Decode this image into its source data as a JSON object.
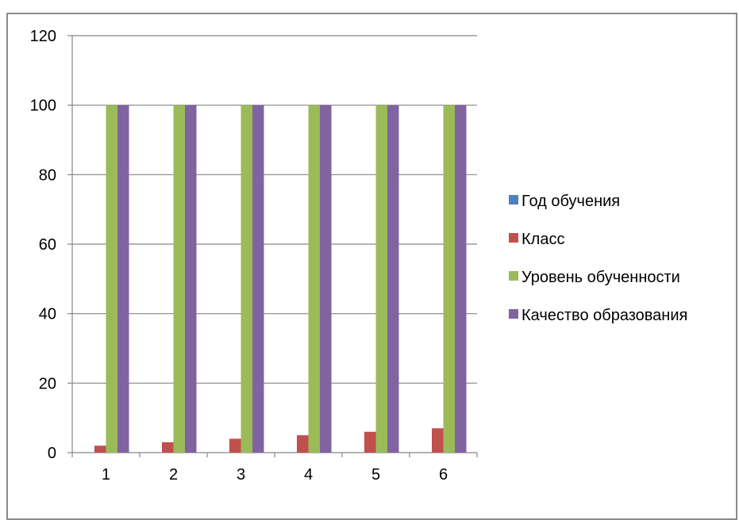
{
  "chart_data": {
    "type": "bar",
    "categories": [
      "1",
      "2",
      "3",
      "4",
      "5",
      "6"
    ],
    "series": [
      {
        "name": "Год обучения",
        "values": [
          0,
          0,
          0,
          0,
          0,
          0
        ],
        "color": "#4F81BD"
      },
      {
        "name": "Класс",
        "values": [
          2,
          3,
          4,
          5,
          6,
          7
        ],
        "color": "#C0504D"
      },
      {
        "name": "Уровень обученности",
        "values": [
          100,
          100,
          100,
          100,
          100,
          100
        ],
        "color": "#9BBB59"
      },
      {
        "name": "Качество образования",
        "values": [
          100,
          100,
          100,
          100,
          100,
          100
        ],
        "color": "#8064A2"
      }
    ],
    "ylim": [
      0,
      120
    ],
    "yticks": [
      0,
      20,
      40,
      60,
      80,
      100,
      120
    ],
    "grid": true,
    "legend_position": "right"
  }
}
